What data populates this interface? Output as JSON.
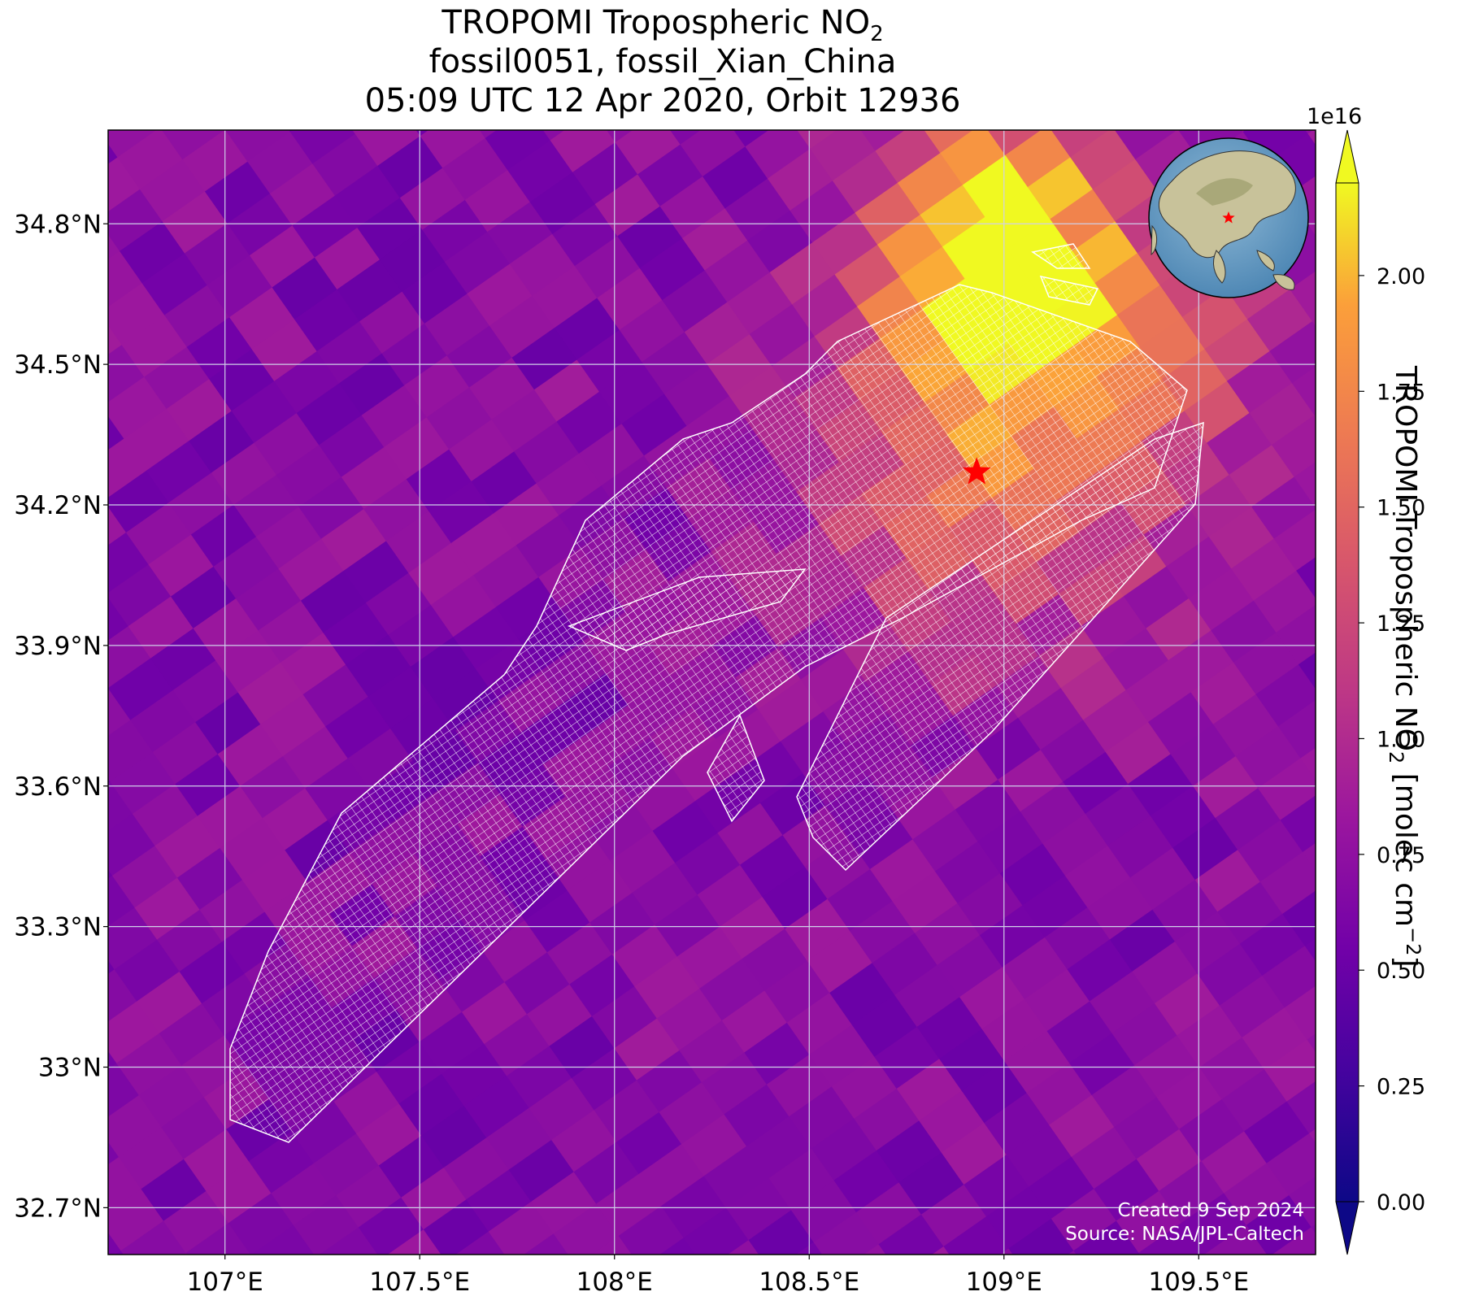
{
  "title": {
    "line1_prefix": "TROPOMI Tropospheric NO",
    "line1_sub": "2",
    "line2": "fossil0051, fossil_Xian_China",
    "line3": "05:09 UTC 12 Apr 2020, Orbit 12936"
  },
  "map": {
    "lon_range": [
      106.7,
      109.8
    ],
    "lat_range": [
      32.6,
      35.0
    ],
    "lon_ticks": [
      {
        "value": 107.0,
        "label": "107°E"
      },
      {
        "value": 107.5,
        "label": "107.5°E"
      },
      {
        "value": 108.0,
        "label": "108°E"
      },
      {
        "value": 108.5,
        "label": "108.5°E"
      },
      {
        "value": 109.0,
        "label": "109°E"
      },
      {
        "value": 109.5,
        "label": "109.5°E"
      }
    ],
    "lat_ticks": [
      {
        "value": 32.7,
        "label": "32.7°N"
      },
      {
        "value": 33.0,
        "label": "33°N"
      },
      {
        "value": 33.3,
        "label": "33.3°N"
      },
      {
        "value": 33.6,
        "label": "33.6°N"
      },
      {
        "value": 33.9,
        "label": "33.9°N"
      },
      {
        "value": 34.2,
        "label": "34.2°N"
      },
      {
        "value": 34.5,
        "label": "34.5°N"
      },
      {
        "value": 34.8,
        "label": "34.8°N"
      }
    ],
    "gridlines": true,
    "site_marker": {
      "lon": 108.93,
      "lat": 34.27,
      "symbol": "star",
      "color": "#ff0000"
    },
    "inset_globe": {
      "position": "top-right",
      "marker": "star"
    },
    "no2_hotspot": {
      "lon": 108.98,
      "lat": 34.75,
      "peak_value": 2.1e+16
    },
    "colormap": "plasma",
    "target_footprint": "white grid of OCO-3 SAM soundings over Xi'an, oriented southwest-northeast"
  },
  "colorbar": {
    "min": 0.0,
    "max": 2.2,
    "extend": "both",
    "exponent_label": "1e16",
    "label_prefix": "TROPOMI Tropospheric NO",
    "label_sub": "2",
    "label_suffix": " [molec cm",
    "label_sup": "−2",
    "label_end": "]",
    "ticks": [
      {
        "value": 0.0,
        "label": "0.00"
      },
      {
        "value": 0.25,
        "label": "0.25"
      },
      {
        "value": 0.5,
        "label": "0.50"
      },
      {
        "value": 0.75,
        "label": "0.75"
      },
      {
        "value": 1.0,
        "label": "1.00"
      },
      {
        "value": 1.25,
        "label": "1.25"
      },
      {
        "value": 1.5,
        "label": "1.50"
      },
      {
        "value": 1.75,
        "label": "1.75"
      },
      {
        "value": 2.0,
        "label": "2.00"
      }
    ]
  },
  "credits": {
    "created": "Created 9 Sep 2024",
    "source": "Source: NASA/JPL-Caltech"
  },
  "colors": {
    "plasma_low": "#0d0887",
    "plasma_high": "#f0f921",
    "grid": "#d8d8f0",
    "footprint": "#ffffff",
    "star": "#ff0000"
  }
}
